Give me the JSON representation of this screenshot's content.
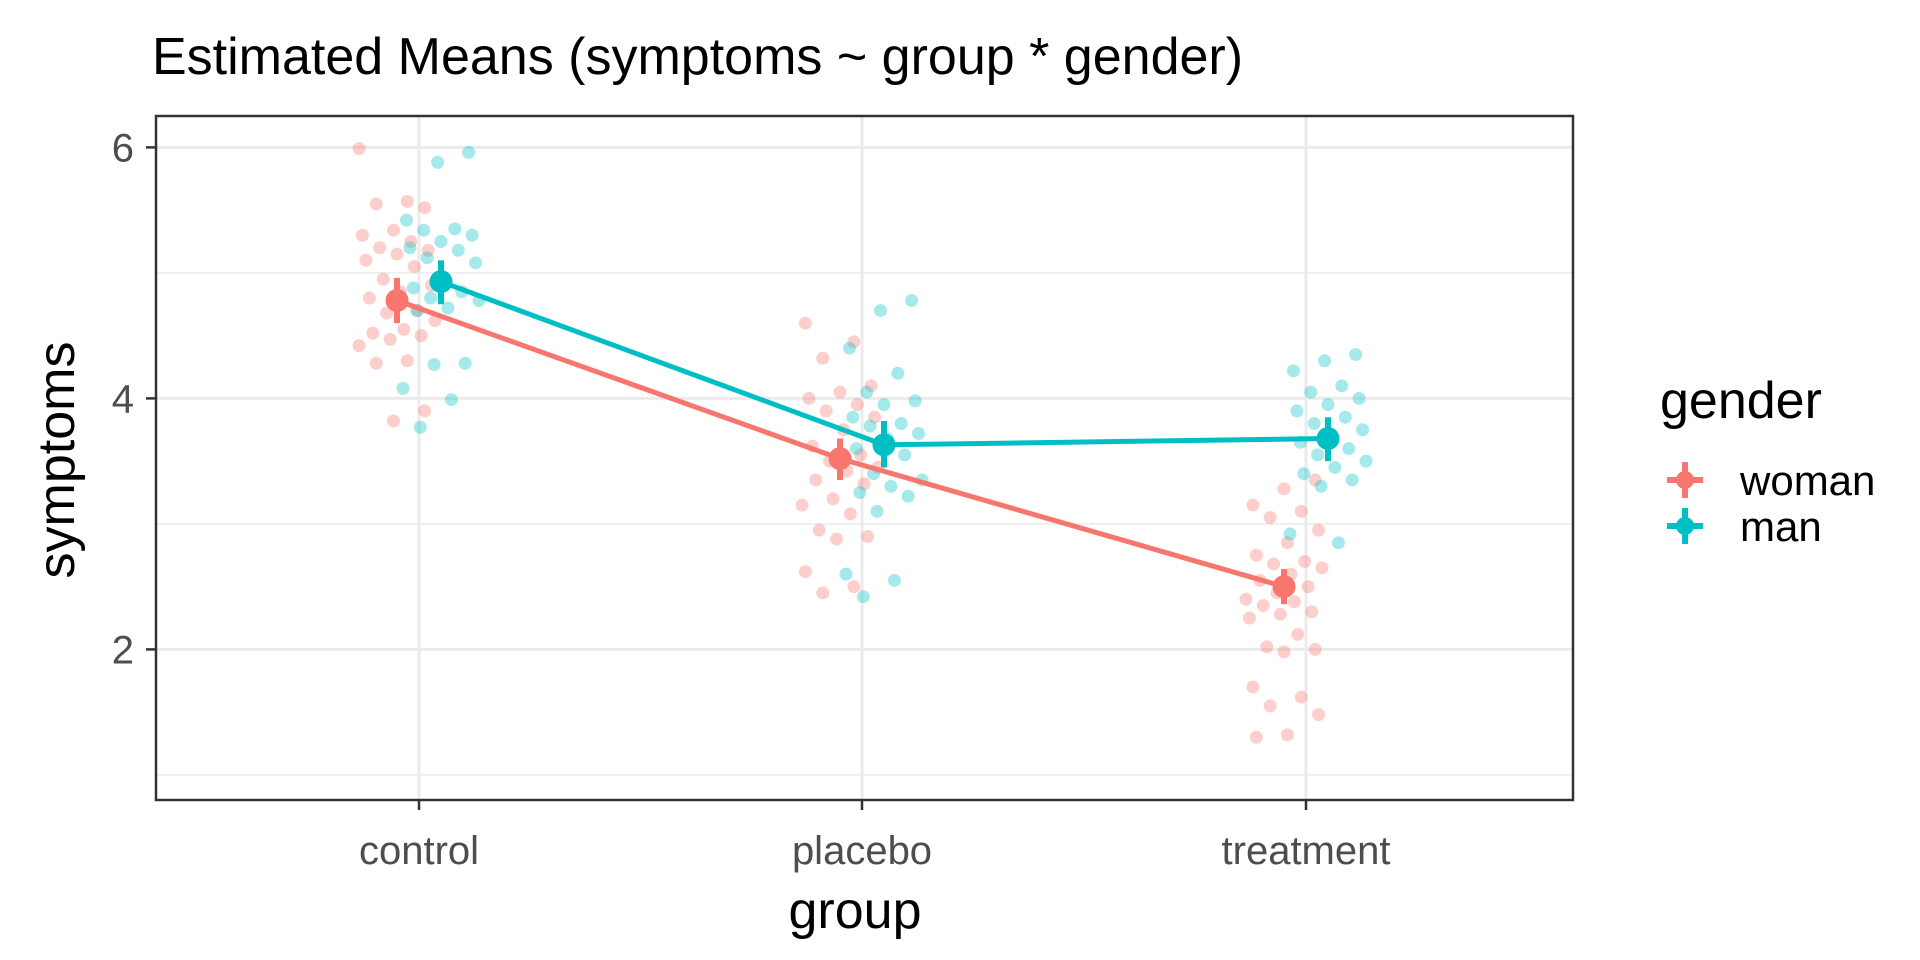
{
  "chart_data": {
    "type": "scatter",
    "title": "Estimated Means (symptoms ~ group * gender)",
    "xlabel": "group",
    "ylabel": "symptoms",
    "categories": [
      "control",
      "placebo",
      "treatment"
    ],
    "ylim": [
      0.8,
      6.25
    ],
    "yticks": [
      2,
      4,
      6
    ],
    "grid": true,
    "legend": {
      "title": "gender",
      "position": "right"
    },
    "series": [
      {
        "name": "woman",
        "color": "#F8766D",
        "means": [
          4.78,
          3.52,
          2.5
        ],
        "ci": [
          [
            4.6,
            4.96
          ],
          [
            3.35,
            3.68
          ],
          [
            2.36,
            2.64
          ]
        ],
        "points": [
          [
            0,
            5.99
          ],
          [
            0,
            5.57
          ],
          [
            0,
            5.55
          ],
          [
            0,
            5.52
          ],
          [
            0,
            5.34
          ],
          [
            0,
            5.3
          ],
          [
            0,
            5.25
          ],
          [
            0,
            5.2
          ],
          [
            0,
            5.18
          ],
          [
            0,
            5.15
          ],
          [
            0,
            5.1
          ],
          [
            0,
            5.05
          ],
          [
            0,
            4.95
          ],
          [
            0,
            4.9
          ],
          [
            0,
            4.85
          ],
          [
            0,
            4.8
          ],
          [
            0,
            4.7
          ],
          [
            0,
            4.68
          ],
          [
            0,
            4.62
          ],
          [
            0,
            4.55
          ],
          [
            0,
            4.52
          ],
          [
            0,
            4.5
          ],
          [
            0,
            4.47
          ],
          [
            0,
            4.42
          ],
          [
            0,
            4.3
          ],
          [
            0,
            4.28
          ],
          [
            0,
            3.9
          ],
          [
            0,
            3.82
          ],
          [
            1,
            4.6
          ],
          [
            1,
            4.45
          ],
          [
            1,
            4.32
          ],
          [
            1,
            4.1
          ],
          [
            1,
            4.05
          ],
          [
            1,
            4.0
          ],
          [
            1,
            3.95
          ],
          [
            1,
            3.9
          ],
          [
            1,
            3.85
          ],
          [
            1,
            3.75
          ],
          [
            1,
            3.62
          ],
          [
            1,
            3.55
          ],
          [
            1,
            3.5
          ],
          [
            1,
            3.45
          ],
          [
            1,
            3.42
          ],
          [
            1,
            3.35
          ],
          [
            1,
            3.32
          ],
          [
            1,
            3.2
          ],
          [
            1,
            3.15
          ],
          [
            1,
            3.08
          ],
          [
            1,
            2.95
          ],
          [
            1,
            2.9
          ],
          [
            1,
            2.88
          ],
          [
            1,
            2.62
          ],
          [
            1,
            2.5
          ],
          [
            1,
            2.45
          ],
          [
            2,
            3.35
          ],
          [
            2,
            3.28
          ],
          [
            2,
            3.15
          ],
          [
            2,
            3.1
          ],
          [
            2,
            3.05
          ],
          [
            2,
            2.95
          ],
          [
            2,
            2.85
          ],
          [
            2,
            2.75
          ],
          [
            2,
            2.7
          ],
          [
            2,
            2.68
          ],
          [
            2,
            2.65
          ],
          [
            2,
            2.6
          ],
          [
            2,
            2.55
          ],
          [
            2,
            2.5
          ],
          [
            2,
            2.45
          ],
          [
            2,
            2.4
          ],
          [
            2,
            2.38
          ],
          [
            2,
            2.35
          ],
          [
            2,
            2.3
          ],
          [
            2,
            2.28
          ],
          [
            2,
            2.25
          ],
          [
            2,
            2.12
          ],
          [
            2,
            2.02
          ],
          [
            2,
            2.0
          ],
          [
            2,
            1.98
          ],
          [
            2,
            1.7
          ],
          [
            2,
            1.62
          ],
          [
            2,
            1.55
          ],
          [
            2,
            1.48
          ],
          [
            2,
            1.32
          ],
          [
            2,
            1.3
          ]
        ]
      },
      {
        "name": "man",
        "color": "#00BFC4",
        "means": [
          4.93,
          3.63,
          3.68
        ],
        "ci": [
          [
            4.75,
            5.1
          ],
          [
            3.45,
            3.82
          ],
          [
            3.5,
            3.85
          ]
        ],
        "points": [
          [
            0,
            5.96
          ],
          [
            0,
            5.88
          ],
          [
            0,
            5.42
          ],
          [
            0,
            5.35
          ],
          [
            0,
            5.34
          ],
          [
            0,
            5.3
          ],
          [
            0,
            5.25
          ],
          [
            0,
            5.2
          ],
          [
            0,
            5.18
          ],
          [
            0,
            5.12
          ],
          [
            0,
            5.08
          ],
          [
            0,
            4.95
          ],
          [
            0,
            4.88
          ],
          [
            0,
            4.85
          ],
          [
            0,
            4.8
          ],
          [
            0,
            4.78
          ],
          [
            0,
            4.72
          ],
          [
            0,
            4.7
          ],
          [
            0,
            4.28
          ],
          [
            0,
            4.27
          ],
          [
            0,
            4.08
          ],
          [
            0,
            3.99
          ],
          [
            0,
            3.77
          ],
          [
            1,
            4.78
          ],
          [
            1,
            4.7
          ],
          [
            1,
            4.4
          ],
          [
            1,
            4.2
          ],
          [
            1,
            4.05
          ],
          [
            1,
            3.98
          ],
          [
            1,
            3.95
          ],
          [
            1,
            3.85
          ],
          [
            1,
            3.8
          ],
          [
            1,
            3.78
          ],
          [
            1,
            3.72
          ],
          [
            1,
            3.68
          ],
          [
            1,
            3.6
          ],
          [
            1,
            3.55
          ],
          [
            1,
            3.4
          ],
          [
            1,
            3.35
          ],
          [
            1,
            3.3
          ],
          [
            1,
            3.25
          ],
          [
            1,
            3.22
          ],
          [
            1,
            3.1
          ],
          [
            1,
            2.6
          ],
          [
            1,
            2.55
          ],
          [
            1,
            2.42
          ],
          [
            2,
            4.35
          ],
          [
            2,
            4.3
          ],
          [
            2,
            4.22
          ],
          [
            2,
            4.1
          ],
          [
            2,
            4.05
          ],
          [
            2,
            4.0
          ],
          [
            2,
            3.95
          ],
          [
            2,
            3.9
          ],
          [
            2,
            3.85
          ],
          [
            2,
            3.8
          ],
          [
            2,
            3.75
          ],
          [
            2,
            3.7
          ],
          [
            2,
            3.65
          ],
          [
            2,
            3.6
          ],
          [
            2,
            3.55
          ],
          [
            2,
            3.5
          ],
          [
            2,
            3.45
          ],
          [
            2,
            3.4
          ],
          [
            2,
            3.35
          ],
          [
            2,
            3.3
          ],
          [
            2,
            2.92
          ],
          [
            2,
            2.85
          ]
        ]
      }
    ]
  }
}
